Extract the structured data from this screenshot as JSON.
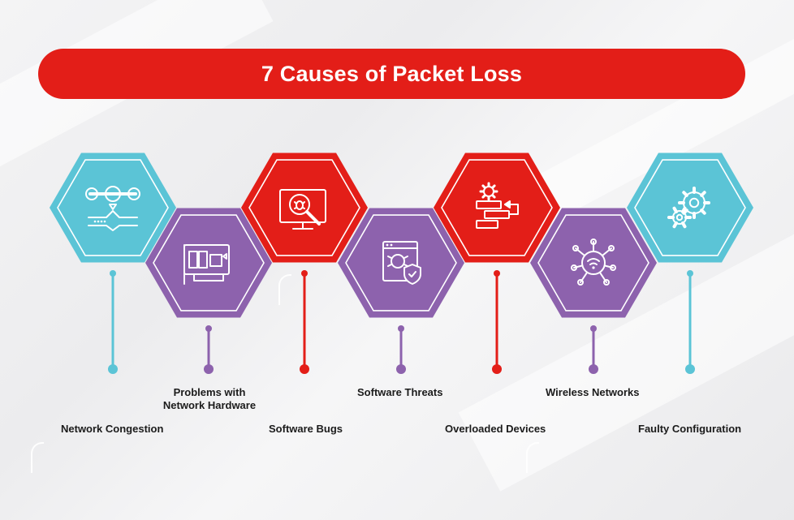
{
  "title": "7 Causes of Packet Loss",
  "colors": {
    "title_bg": "#e31e18",
    "teal": "#5bc4d6",
    "purple": "#8d62ad",
    "red": "#e31e18"
  },
  "causes": [
    {
      "label_lines": [
        "Network Congestion"
      ],
      "color": "teal",
      "icon": "tools-network-flow-icon"
    },
    {
      "label_lines": [
        "Problems with",
        "Network Hardware"
      ],
      "color": "purple",
      "icon": "network-card-icon"
    },
    {
      "label_lines": [
        "Software Bugs"
      ],
      "color": "red",
      "icon": "bug-search-monitor-icon"
    },
    {
      "label_lines": [
        "Software Threats"
      ],
      "color": "purple",
      "icon": "malware-shield-window-icon"
    },
    {
      "label_lines": [
        "Overloaded Devices"
      ],
      "color": "red",
      "icon": "server-gear-icon"
    },
    {
      "label_lines": [
        "Wireless Networks"
      ],
      "color": "purple",
      "icon": "wifi-hub-icon"
    },
    {
      "label_lines": [
        "Faulty Configuration"
      ],
      "color": "teal",
      "icon": "gears-icon"
    }
  ]
}
